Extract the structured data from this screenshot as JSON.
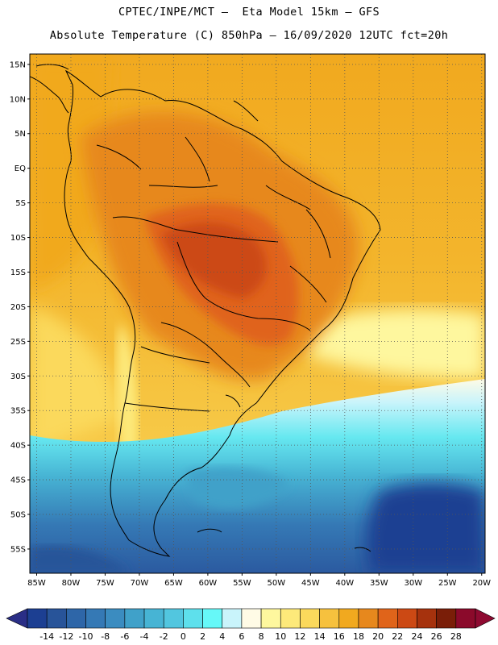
{
  "header": {
    "line1": "CPTEC/INPE/MCT –  Eta Model 15km – GFS",
    "line2": "Absolute Temperature (C) 850hPa – 16/09/2020 12UTC fct=20h"
  },
  "map": {
    "lat_ticks": [
      "15N",
      "10N",
      "5N",
      "EQ",
      "5S",
      "10S",
      "15S",
      "20S",
      "25S",
      "30S",
      "35S",
      "40S",
      "45S",
      "50S",
      "55S"
    ],
    "lon_ticks": [
      "85W",
      "80W",
      "75W",
      "70W",
      "65W",
      "60W",
      "55W",
      "50W",
      "45W",
      "40W",
      "35W",
      "30W",
      "25W",
      "20W"
    ],
    "lat_values": [
      15,
      10,
      5,
      0,
      -5,
      -10,
      -15,
      -20,
      -25,
      -30,
      -35,
      -40,
      -45,
      -50,
      -55
    ],
    "lon_values": [
      -85,
      -80,
      -75,
      -70,
      -65,
      -60,
      -55,
      -50,
      -45,
      -40,
      -35,
      -30,
      -25,
      -20
    ]
  },
  "colorbar": {
    "labels": [
      "-14",
      "-12",
      "-10",
      "-8",
      "-6",
      "-4",
      "-2",
      "0",
      "2",
      "4",
      "6",
      "8",
      "10",
      "12",
      "14",
      "16",
      "18",
      "20",
      "22",
      "24",
      "26",
      "28"
    ],
    "colors": [
      "#1c3f92",
      "#285499",
      "#2e66a8",
      "#3579b5",
      "#3b8cc0",
      "#40a1c9",
      "#47b4d4",
      "#52c6df",
      "#5ee0ec",
      "#66f8f8",
      "#c9f4fb",
      "#fffbe6",
      "#fef79e",
      "#fde97a",
      "#fbd95c",
      "#f6c13e",
      "#f1a91f",
      "#e7881d",
      "#e0641a",
      "#cc4914",
      "#a6320d",
      "#7a1e08",
      "#8b0a2b"
    ],
    "under_color": "#2a2e86",
    "over_color": "#8e0a31"
  }
}
